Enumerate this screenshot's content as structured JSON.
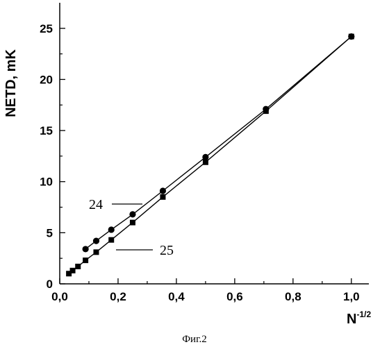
{
  "chart_data": {
    "type": "scatter",
    "xlabel": "N",
    "xlabel_superscript": "-1/2",
    "ylabel": "NETD, mK",
    "xlim": [
      0,
      1.06
    ],
    "ylim": [
      0,
      27.5
    ],
    "xticks": [
      0.0,
      0.2,
      0.4,
      0.6,
      0.8,
      1.0
    ],
    "xtick_labels": [
      "0,0",
      "0,2",
      "0,4",
      "0,6",
      "0,8",
      "1,0"
    ],
    "yticks": [
      0,
      5,
      10,
      15,
      20,
      25
    ],
    "ytick_labels": [
      "0",
      "5",
      "10",
      "15",
      "20",
      "25"
    ],
    "grid": false,
    "series": [
      {
        "name": "24",
        "marker": "circle",
        "line": true,
        "x": [
          0.0884,
          0.125,
          0.1768,
          0.25,
          0.3536,
          0.5,
          0.7071,
          1.0
        ],
        "y": [
          3.4,
          4.2,
          5.3,
          6.8,
          9.1,
          12.4,
          17.1,
          24.2
        ]
      },
      {
        "name": "25",
        "marker": "square",
        "line": true,
        "x": [
          0.03125,
          0.0442,
          0.0625,
          0.0884,
          0.125,
          0.1768,
          0.25,
          0.3536,
          0.5,
          0.7071,
          1.0
        ],
        "y": [
          1.0,
          1.3,
          1.7,
          2.3,
          3.1,
          4.3,
          6.0,
          8.5,
          11.9,
          16.9,
          24.2
        ]
      }
    ],
    "caption": "Фиг.2"
  }
}
